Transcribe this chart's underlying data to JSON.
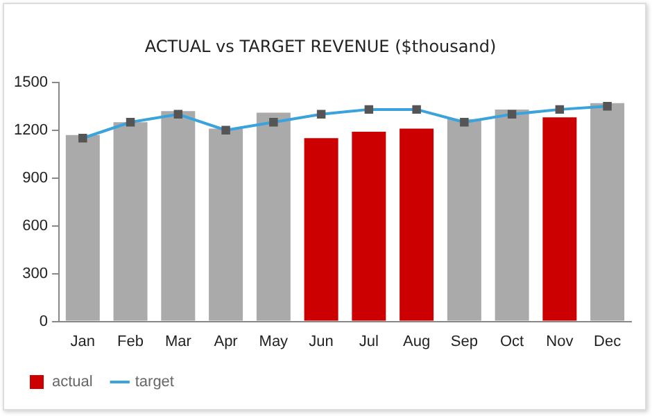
{
  "chart_data": {
    "type": "bar",
    "title": "ACTUAL vs TARGET REVENUE ($thousand)",
    "categories": [
      "Jan",
      "Feb",
      "Mar",
      "Apr",
      "May",
      "Jun",
      "Jul",
      "Aug",
      "Sep",
      "Oct",
      "Nov",
      "Dec"
    ],
    "series": [
      {
        "name": "actual",
        "colors": [
          "#aaaaaa",
          "#aaaaaa",
          "#aaaaaa",
          "#aaaaaa",
          "#aaaaaa",
          "#cc0000",
          "#cc0000",
          "#cc0000",
          "#aaaaaa",
          "#aaaaaa",
          "#cc0000",
          "#aaaaaa"
        ],
        "values": [
          1170,
          1250,
          1320,
          1210,
          1310,
          1150,
          1190,
          1210,
          1270,
          1330,
          1280,
          1370
        ]
      },
      {
        "name": "target",
        "type": "line",
        "color": "#3ba3dc",
        "marker": "square",
        "values": [
          1150,
          1250,
          1300,
          1200,
          1250,
          1300,
          1330,
          1330,
          1250,
          1300,
          1330,
          1350
        ]
      }
    ],
    "ylim": [
      0,
      1500
    ],
    "yticks": [
      0,
      300,
      600,
      900,
      1200,
      1500
    ],
    "grid": false,
    "legend": "bottom left"
  }
}
